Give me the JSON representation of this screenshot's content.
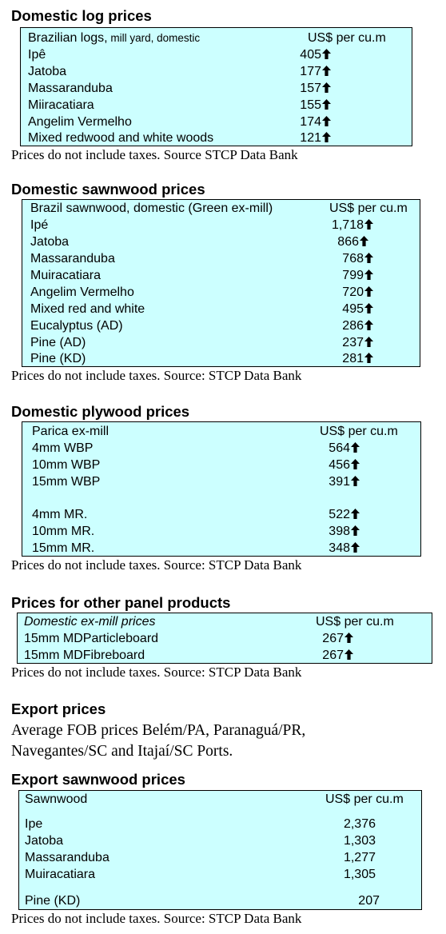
{
  "log_section": {
    "heading": "Domestic log prices",
    "header_label": "Brazilian logs,",
    "header_label_small": " mill yard, domestic",
    "header_unit": "US$ per cu.m",
    "rows": [
      {
        "name": "Ipê",
        "value": "405",
        "arrow": "up-arrow-icon"
      },
      {
        "name": "Jatoba",
        "value": "177",
        "arrow": "up-arrow-icon"
      },
      {
        "name": "Massaranduba",
        "value": "157",
        "arrow": "up-arrow-icon"
      },
      {
        "name": "Miiracatiara",
        "value": "155",
        "arrow": "up-arrow-icon"
      },
      {
        "name": "Angelim Vermelho",
        "value": "174",
        "arrow": "up-arrow-icon"
      },
      {
        "name": "Mixed redwood and white woods",
        "value": "121",
        "arrow": "up-arrow-icon"
      }
    ],
    "note": "Prices do not include taxes. Source STCP Data Bank"
  },
  "sawnwood_section": {
    "heading": "Domestic sawnwood prices",
    "header_label": "Brazil sawnwood, domestic (Green ex-mill)",
    "header_unit": "US$ per cu.m",
    "rows": [
      {
        "name": "Ipé",
        "value": "1,718"
      },
      {
        "name": "Jatoba",
        "value": "866"
      },
      {
        "name": "Massaranduba",
        "value": "768"
      },
      {
        "name": "Muiracatiara",
        "value": "799"
      },
      {
        "name": "Angelim Vermelho",
        "value": "720"
      },
      {
        "name": "Mixed red and white",
        "value": "495"
      },
      {
        "name": "Eucalyptus (AD)",
        "value": "286"
      },
      {
        "name": "Pine (AD)",
        "value": "237"
      },
      {
        "name": "Pine (KD)",
        "value": "281"
      }
    ],
    "note": "Prices do not include taxes. Source: STCP Data Bank"
  },
  "plywood_section": {
    "heading": "Domestic plywood prices",
    "header_label": "Parica ex-mill",
    "header_unit": "US$ per cu.m",
    "rows": [
      {
        "name": "4mm WBP",
        "value": "564"
      },
      {
        "name": "10mm WBP",
        "value": "456"
      },
      {
        "name": "15mm WBP",
        "value": "391"
      },
      {
        "name": "4mm MR.",
        "value": "522"
      },
      {
        "name": "10mm MR.",
        "value": "398"
      },
      {
        "name": "15mm MR.",
        "value": "348"
      }
    ],
    "note": "Prices do not include taxes. Source: STCP Data Bank"
  },
  "panel_section": {
    "heading": "Prices for other panel products",
    "header_label": "Domestic ex-mill prices",
    "header_unit": "US$ per cu.m",
    "rows": [
      {
        "name": "15mm MDParticleboard",
        "value": "267"
      },
      {
        "name": "15mm MDFibreboard",
        "value": "267"
      }
    ],
    "note": "Prices do not include taxes. Source: STCP Data Bank"
  },
  "export_intro": {
    "heading": "Export prices",
    "text": "Average FOB prices Belém/PA, Paranaguá/PR, Navegantes/SC and Itajaí/SC Ports."
  },
  "export_sawnwood_section": {
    "heading": "Export sawnwood prices",
    "header_label": "Sawnwood",
    "header_unit": "US$ per cu.m",
    "rows": [
      {
        "name": "Ipe",
        "value": "2,376"
      },
      {
        "name": "Jatoba",
        "value": "1,303"
      },
      {
        "name": "Massaranduba",
        "value": "1,277"
      },
      {
        "name": "Muiracatiara",
        "value": "1,305"
      },
      {
        "name": "Pine (KD)",
        "value": "207"
      }
    ],
    "note": "Prices do not include taxes. Source: STCP Data Bank"
  },
  "colors": {
    "box_fill": "#ccffff",
    "border": "#000000"
  }
}
